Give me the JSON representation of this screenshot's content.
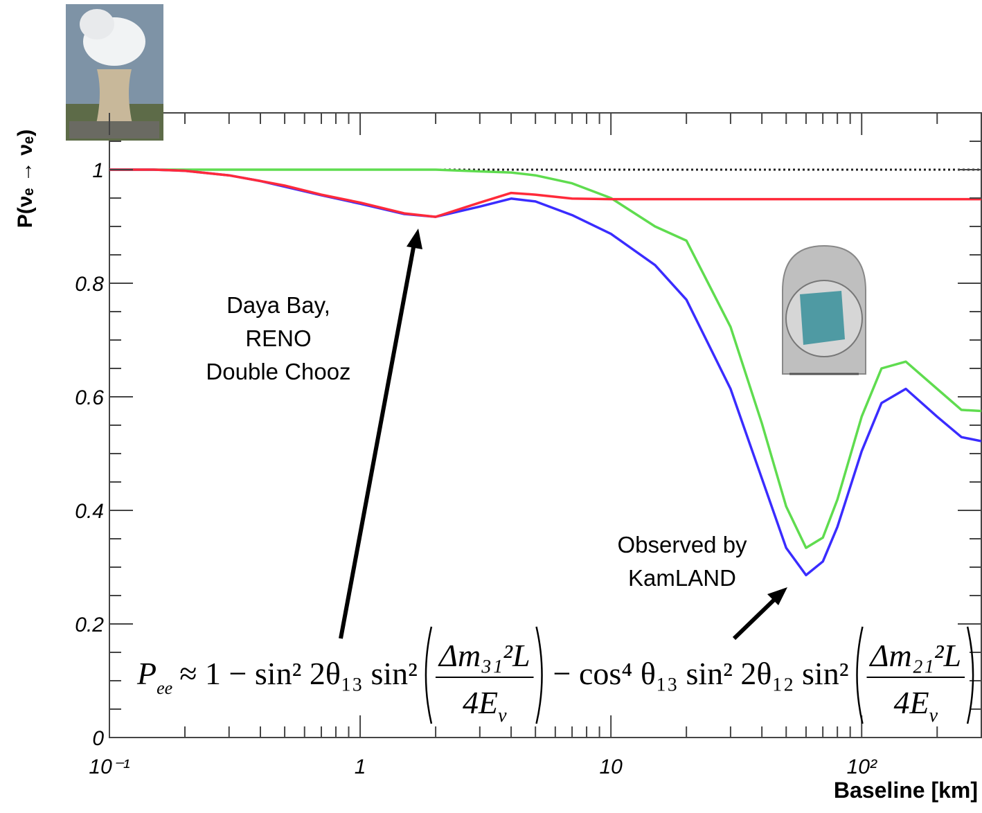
{
  "chart_data": {
    "type": "line",
    "xscale": "log",
    "xlabel": "Baseline [km]",
    "ylabel": "P(νₑ → νₑ)",
    "x": [
      0.1,
      0.15,
      0.2,
      0.3,
      0.4,
      0.5,
      0.7,
      1,
      1.5,
      2,
      3,
      4,
      5,
      7,
      10,
      15,
      20,
      30,
      40,
      50,
      60,
      70,
      80,
      100,
      120,
      150,
      200,
      250,
      300
    ],
    "series": [
      {
        "color": "#5fdc4f",
        "values": [
          1,
          1,
          1,
          1,
          1,
          1,
          1,
          1,
          1,
          1,
          0.997,
          0.995,
          0.99,
          0.976,
          0.95,
          0.9,
          0.875,
          0.723,
          0.553,
          0.407,
          0.334,
          0.352,
          0.419,
          0.565,
          0.65,
          0.662,
          0.614,
          0.577,
          0.575
        ]
      },
      {
        "color": "#3a2cff",
        "values": [
          1,
          1,
          0.998,
          0.99,
          0.98,
          0.97,
          0.955,
          0.94,
          0.922,
          0.917,
          0.935,
          0.949,
          0.944,
          0.92,
          0.887,
          0.832,
          0.771,
          0.614,
          0.456,
          0.334,
          0.286,
          0.31,
          0.371,
          0.504,
          0.589,
          0.614,
          0.565,
          0.529,
          0.522
        ]
      },
      {
        "color": "#ff2a3a",
        "values": [
          1,
          1,
          0.998,
          0.99,
          0.98,
          0.972,
          0.956,
          0.942,
          0.923,
          0.917,
          0.942,
          0.959,
          0.956,
          0.949,
          0.948,
          0.948,
          0.948,
          0.948,
          0.948,
          0.948,
          0.948,
          0.948,
          0.948,
          0.948,
          0.948,
          0.948,
          0.948,
          0.948,
          0.948
        ]
      },
      {
        "color": "#222222",
        "style": "dotted",
        "values": [
          1,
          1,
          1,
          1,
          1,
          1,
          1,
          1,
          1,
          1,
          1,
          1,
          1,
          1,
          1,
          1,
          1,
          1,
          1,
          1,
          1,
          1,
          1,
          1,
          1,
          1,
          1,
          1,
          1
        ]
      }
    ],
    "xlim": [
      0.1,
      300
    ],
    "ylim": [
      0,
      1.1
    ],
    "xticks": [
      {
        "value": 0.1,
        "label": "10⁻¹"
      },
      1,
      10,
      {
        "value": 100,
        "label": "10²"
      }
    ],
    "yticks": [
      0,
      0.2,
      0.4,
      0.6,
      0.8,
      1
    ],
    "xminorticks": [
      0.2,
      0.3,
      0.4,
      0.5,
      0.6,
      0.7,
      0.8,
      0.9,
      2,
      3,
      4,
      5,
      6,
      7,
      8,
      9,
      20,
      30,
      40,
      50,
      60,
      70,
      80,
      90,
      200,
      300
    ],
    "yminorticks": [
      0.05,
      0.1,
      0.15,
      0.25,
      0.3,
      0.35,
      0.45,
      0.5,
      0.55,
      0.65,
      0.7,
      0.75,
      0.85,
      0.9,
      0.95,
      1.05
    ],
    "annotations": [
      [
        "Daya Bay,",
        "RENO",
        "Double Chooz"
      ],
      [
        "Observed by",
        "KamLAND"
      ]
    ],
    "formula": {
      "lhs": "P",
      "lhs_sub": "ee",
      "part1": "≈ 1 − sin² 2θ₁₃ sin²",
      "frac1": {
        "num": "Δm₃₁²L",
        "den": "4E",
        "den_sub": "ν"
      },
      "part2": "− cos⁴ θ₁₃ sin² 2θ₁₂ sin²",
      "frac2": {
        "num": "Δm₂₁²L",
        "den": "4E",
        "den_sub": "ν"
      }
    }
  }
}
